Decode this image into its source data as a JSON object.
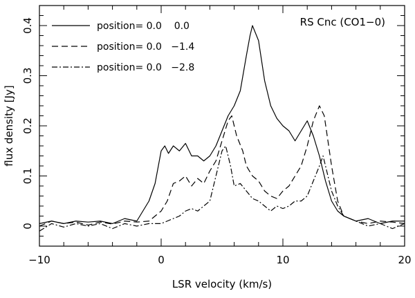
{
  "chart_data": {
    "type": "line",
    "title": "RS Cnc (CO1−0)",
    "xlabel": "LSR velocity (km/s)",
    "ylabel": "flux density [Jy]",
    "xlim": [
      -10,
      20
    ],
    "ylim": [
      -0.04,
      0.44
    ],
    "x_ticks": [
      -10,
      0,
      10,
      20
    ],
    "x_tick_labels": [
      "−10",
      "0",
      "10",
      "20"
    ],
    "y_ticks": [
      0,
      0.1,
      0.2,
      0.3,
      0.4
    ],
    "y_tick_labels": [
      "0",
      "0.1",
      "0.2",
      "0.3",
      "0.4"
    ],
    "grid": false,
    "legend_position": "top-left",
    "series": [
      {
        "name": "position= 0.0    0.0",
        "dash": "solid",
        "points": [
          [
            -10,
            0.005
          ],
          [
            -9,
            0.01
          ],
          [
            -8,
            0.005
          ],
          [
            -7,
            0.01
          ],
          [
            -6,
            0.008
          ],
          [
            -5,
            0.01
          ],
          [
            -4,
            0.005
          ],
          [
            -3,
            0.015
          ],
          [
            -2,
            0.01
          ],
          [
            -1.5,
            0.03
          ],
          [
            -1,
            0.05
          ],
          [
            -0.5,
            0.085
          ],
          [
            0,
            0.15
          ],
          [
            0.3,
            0.16
          ],
          [
            0.6,
            0.145
          ],
          [
            1,
            0.16
          ],
          [
            1.5,
            0.15
          ],
          [
            2,
            0.165
          ],
          [
            2.5,
            0.14
          ],
          [
            3,
            0.14
          ],
          [
            3.5,
            0.13
          ],
          [
            4,
            0.14
          ],
          [
            4.5,
            0.16
          ],
          [
            5,
            0.19
          ],
          [
            5.5,
            0.22
          ],
          [
            6,
            0.24
          ],
          [
            6.5,
            0.27
          ],
          [
            7,
            0.34
          ],
          [
            7.3,
            0.38
          ],
          [
            7.5,
            0.4
          ],
          [
            8,
            0.37
          ],
          [
            8.5,
            0.29
          ],
          [
            9,
            0.24
          ],
          [
            9.5,
            0.215
          ],
          [
            10,
            0.2
          ],
          [
            10.5,
            0.19
          ],
          [
            11,
            0.17
          ],
          [
            11.5,
            0.19
          ],
          [
            12,
            0.21
          ],
          [
            12.5,
            0.18
          ],
          [
            13,
            0.14
          ],
          [
            13.5,
            0.09
          ],
          [
            14,
            0.05
          ],
          [
            14.5,
            0.03
          ],
          [
            15,
            0.02
          ],
          [
            16,
            0.01
          ],
          [
            17,
            0.015
          ],
          [
            18,
            0.005
          ],
          [
            19,
            0.01
          ],
          [
            20,
            0.01
          ]
        ]
      },
      {
        "name": "position= 0.0   −1.4",
        "dash": "dashed",
        "points": [
          [
            -10,
            0.0
          ],
          [
            -9,
            0.01
          ],
          [
            -8,
            0.005
          ],
          [
            -7,
            0.008
          ],
          [
            -6,
            0.002
          ],
          [
            -5,
            0.008
          ],
          [
            -4,
            0.004
          ],
          [
            -3,
            0.01
          ],
          [
            -2,
            0.008
          ],
          [
            -1,
            0.01
          ],
          [
            -0.5,
            0.02
          ],
          [
            0,
            0.03
          ],
          [
            0.5,
            0.05
          ],
          [
            1,
            0.085
          ],
          [
            1.5,
            0.09
          ],
          [
            2,
            0.1
          ],
          [
            2.5,
            0.08
          ],
          [
            3,
            0.095
          ],
          [
            3.5,
            0.085
          ],
          [
            4,
            0.11
          ],
          [
            4.5,
            0.13
          ],
          [
            5,
            0.17
          ],
          [
            5.5,
            0.21
          ],
          [
            5.8,
            0.22
          ],
          [
            6.2,
            0.18
          ],
          [
            6.7,
            0.15
          ],
          [
            7,
            0.12
          ],
          [
            7.5,
            0.1
          ],
          [
            8,
            0.09
          ],
          [
            8.5,
            0.07
          ],
          [
            9,
            0.06
          ],
          [
            9.5,
            0.055
          ],
          [
            10,
            0.07
          ],
          [
            10.5,
            0.08
          ],
          [
            11,
            0.1
          ],
          [
            11.5,
            0.12
          ],
          [
            12,
            0.16
          ],
          [
            12.5,
            0.21
          ],
          [
            13,
            0.24
          ],
          [
            13.4,
            0.22
          ],
          [
            14,
            0.12
          ],
          [
            14.5,
            0.05
          ],
          [
            15,
            0.02
          ],
          [
            16,
            0.01
          ],
          [
            17,
            0.005
          ],
          [
            18,
            0.01
          ],
          [
            19,
            0.008
          ],
          [
            20,
            0.005
          ]
        ]
      },
      {
        "name": "position= 0.0   −2.8",
        "dash": "dashdot",
        "points": [
          [
            -10,
            -0.01
          ],
          [
            -9,
            0.005
          ],
          [
            -8,
            -0.002
          ],
          [
            -7,
            0.005
          ],
          [
            -6,
            0.0
          ],
          [
            -5,
            0.005
          ],
          [
            -4,
            -0.005
          ],
          [
            -3,
            0.005
          ],
          [
            -2,
            0.0
          ],
          [
            -1,
            0.005
          ],
          [
            0,
            0.005
          ],
          [
            0.5,
            0.01
          ],
          [
            1,
            0.015
          ],
          [
            1.5,
            0.02
          ],
          [
            2,
            0.03
          ],
          [
            2.5,
            0.035
          ],
          [
            3,
            0.03
          ],
          [
            3.5,
            0.04
          ],
          [
            4,
            0.05
          ],
          [
            4.5,
            0.1
          ],
          [
            5,
            0.15
          ],
          [
            5.3,
            0.16
          ],
          [
            5.7,
            0.12
          ],
          [
            6,
            0.08
          ],
          [
            6.5,
            0.085
          ],
          [
            7,
            0.07
          ],
          [
            7.5,
            0.055
          ],
          [
            8,
            0.05
          ],
          [
            8.5,
            0.04
          ],
          [
            9,
            0.03
          ],
          [
            9.5,
            0.04
          ],
          [
            10,
            0.035
          ],
          [
            10.5,
            0.04
          ],
          [
            11,
            0.05
          ],
          [
            11.5,
            0.05
          ],
          [
            12,
            0.06
          ],
          [
            12.5,
            0.09
          ],
          [
            13,
            0.12
          ],
          [
            13.3,
            0.14
          ],
          [
            13.7,
            0.1
          ],
          [
            14,
            0.07
          ],
          [
            14.5,
            0.04
          ],
          [
            15,
            0.02
          ],
          [
            16,
            0.01
          ],
          [
            17,
            0.0
          ],
          [
            18,
            0.005
          ],
          [
            19,
            -0.005
          ],
          [
            20,
            0.005
          ]
        ]
      }
    ]
  }
}
